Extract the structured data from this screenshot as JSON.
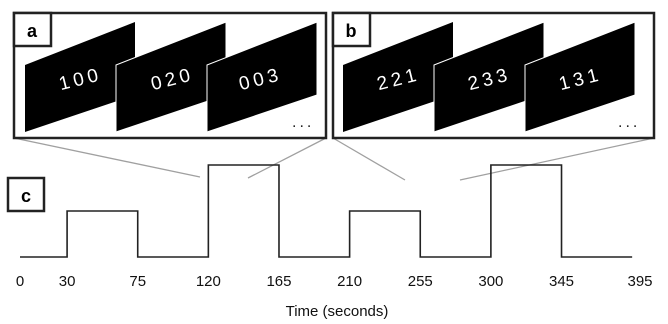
{
  "panels": {
    "a": {
      "label": "a",
      "frames": [
        "100",
        "020",
        "003"
      ],
      "ellipsis": "..."
    },
    "b": {
      "label": "b",
      "frames": [
        "221",
        "233",
        "131"
      ],
      "ellipsis": "..."
    },
    "c": {
      "label": "c"
    }
  },
  "timeline": {
    "xlabel": "Time (seconds)",
    "ticks": [
      "0",
      "30",
      "75",
      "120",
      "165",
      "210",
      "255",
      "300",
      "345",
      "395"
    ],
    "levels": [
      {
        "start": 0,
        "end": 30,
        "level": 0
      },
      {
        "start": 30,
        "end": 75,
        "level": 1
      },
      {
        "start": 75,
        "end": 120,
        "level": 0
      },
      {
        "start": 120,
        "end": 165,
        "level": 2
      },
      {
        "start": 165,
        "end": 210,
        "level": 0
      },
      {
        "start": 210,
        "end": 255,
        "level": 1
      },
      {
        "start": 255,
        "end": 300,
        "level": 0
      },
      {
        "start": 300,
        "end": 345,
        "level": 2
      },
      {
        "start": 345,
        "end": 390,
        "level": 0
      }
    ]
  },
  "colors": {
    "frame_fill": "#000000",
    "frame_text": "#ffffff",
    "line": "#222222",
    "connector": "#999999"
  }
}
